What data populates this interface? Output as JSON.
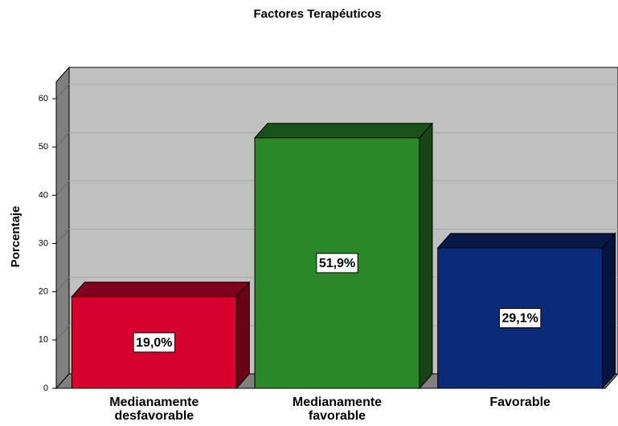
{
  "chart_data": {
    "type": "bar3d",
    "title": "Factores Terapéuticos",
    "ylabel": "Porcentaje",
    "categories": [
      "Medianamente desfavorable",
      "Medianamente favorable",
      "Favorable"
    ],
    "values": [
      19.0,
      51.9,
      29.1
    ],
    "value_labels": [
      "19,0%",
      "51,9%",
      "29,1%"
    ],
    "colors": [
      "#d7002e",
      "#2a882a",
      "#0a2a7a"
    ],
    "ylim": [
      0,
      63.5
    ],
    "yticks": [
      0,
      10,
      20,
      30,
      40,
      50,
      60
    ],
    "grid": true
  }
}
